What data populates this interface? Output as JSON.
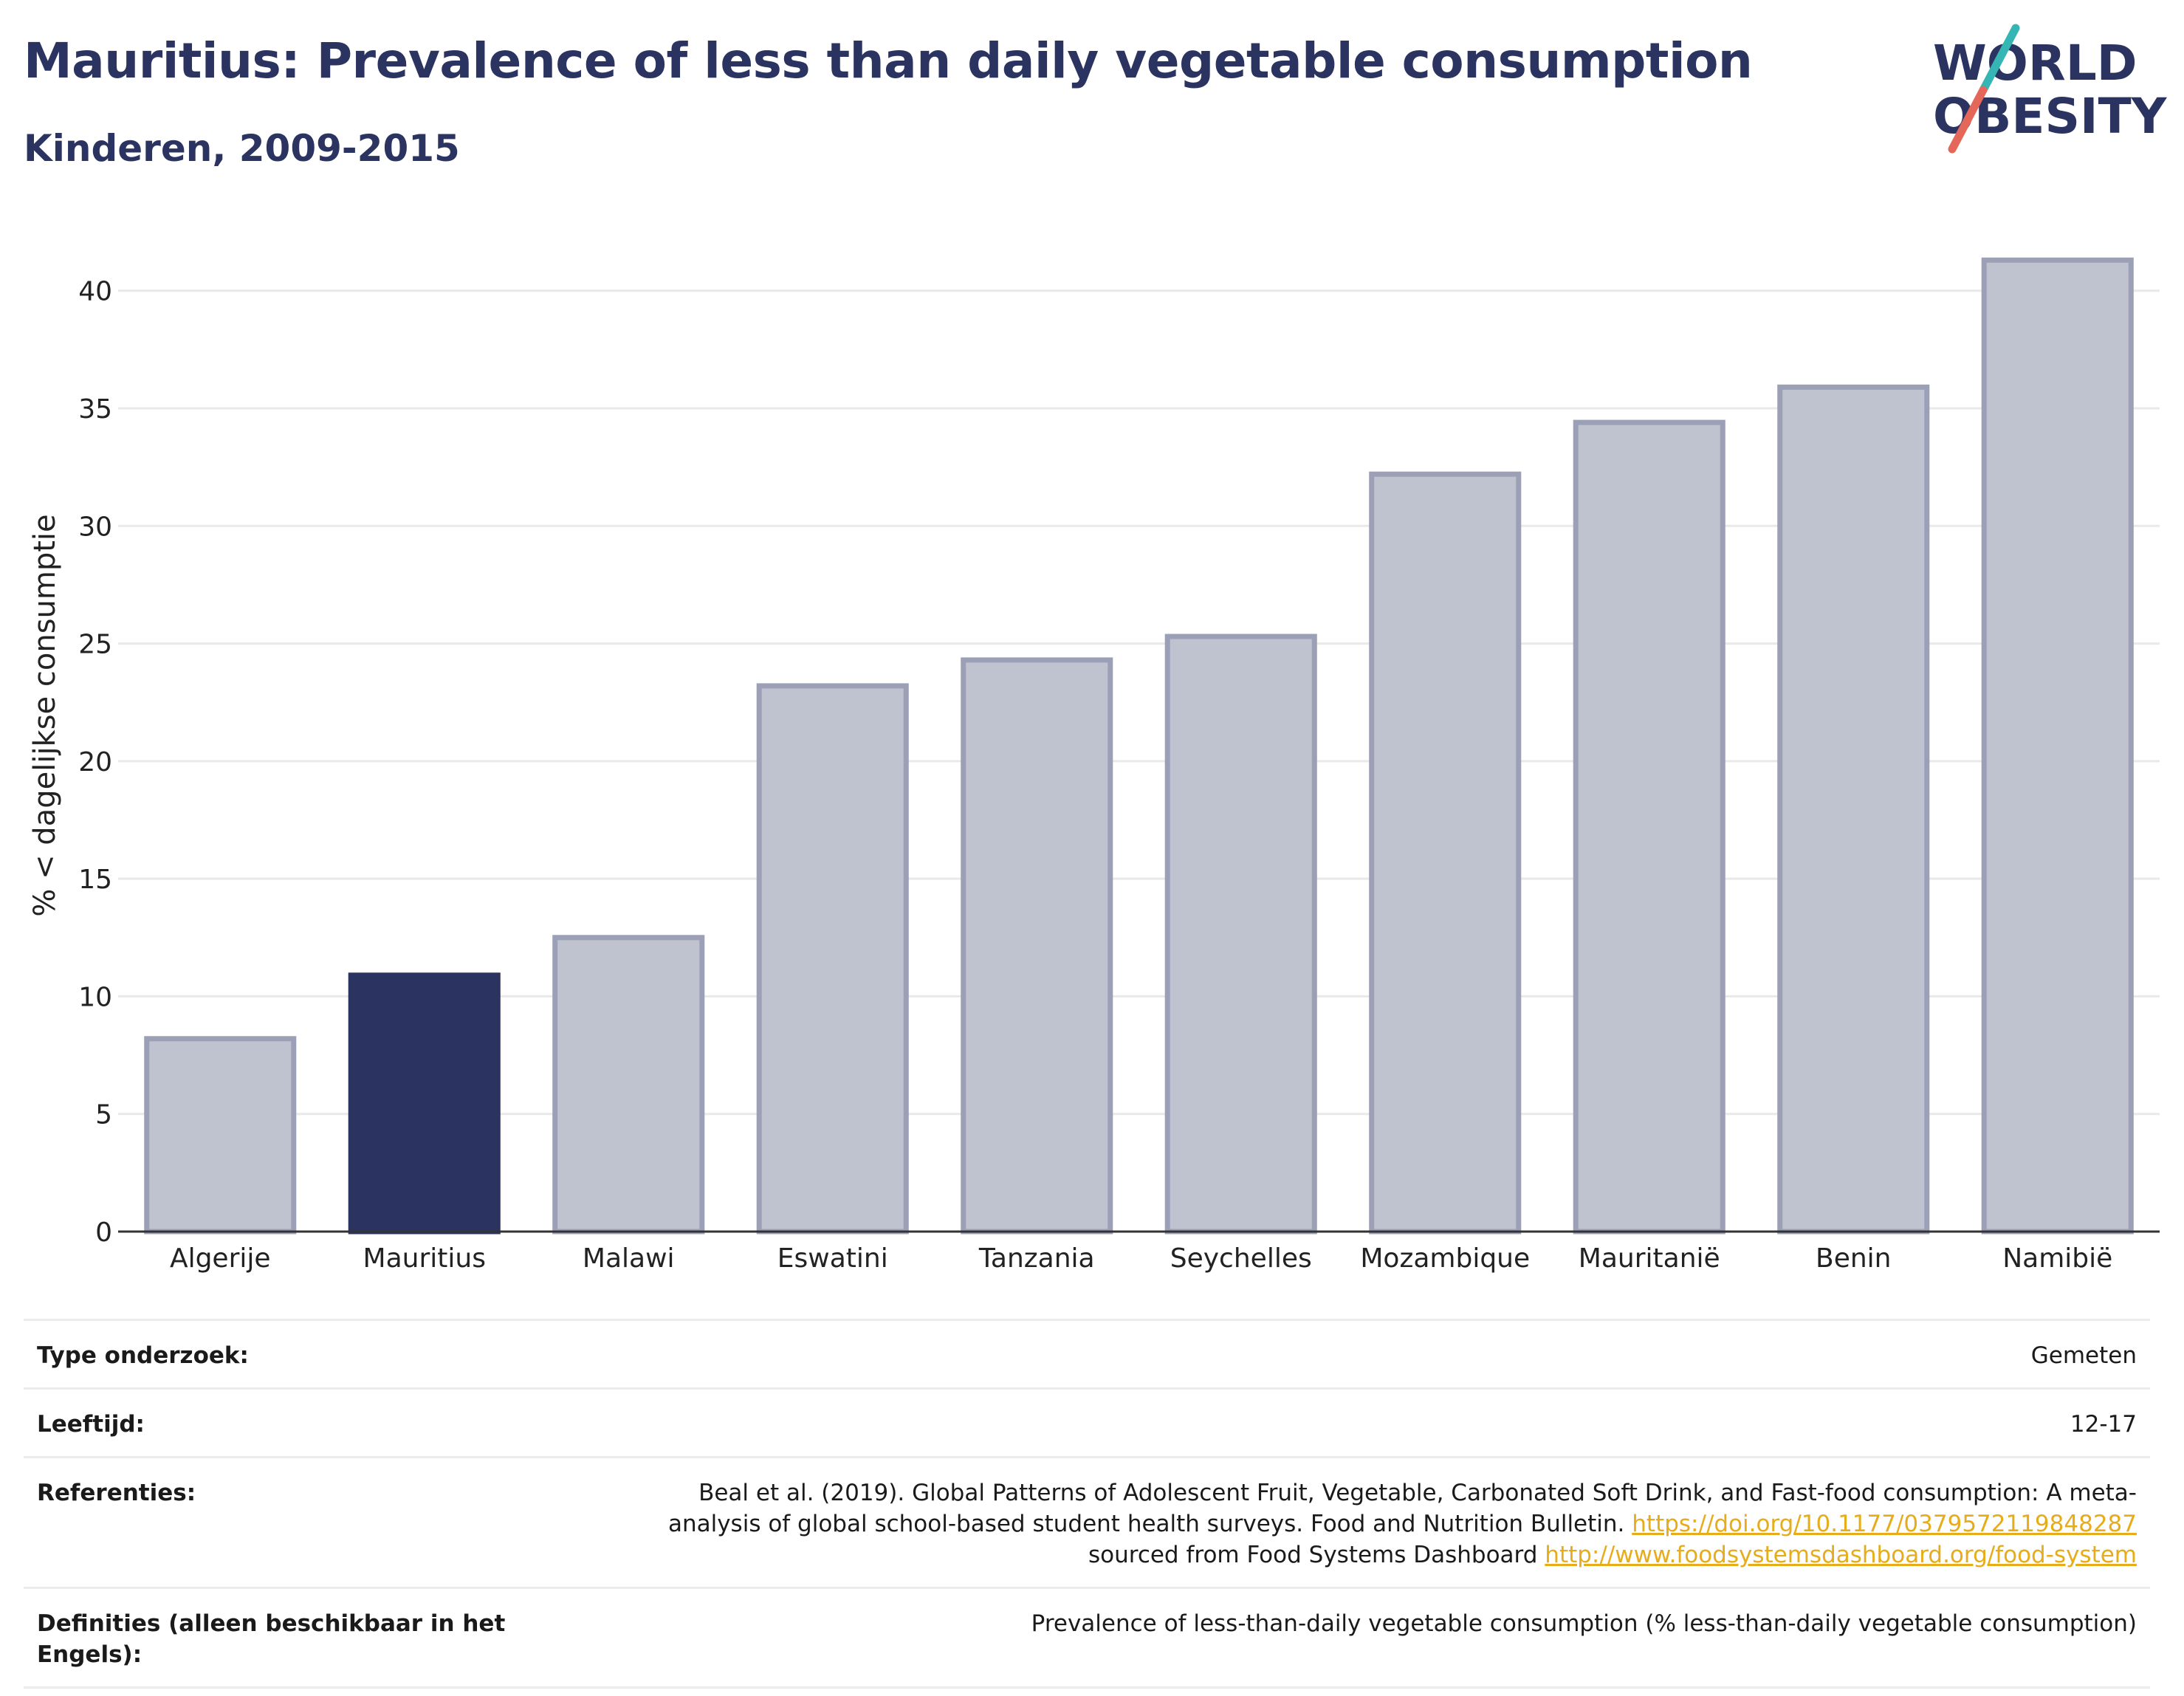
{
  "header": {
    "title": "Mauritius: Prevalence of less than daily vegetable consumption",
    "subtitle": "Kinderen, 2009-2015",
    "logo_line1": "WORLD",
    "logo_line2": "OBESITY"
  },
  "colors": {
    "highlight": "#2b3461",
    "bar_fill": "#bfc2cf",
    "bar_stroke": "#9ba0b7",
    "logo_teal": "#35b6b4",
    "logo_coral": "#e4675a",
    "link": "#e6ac19"
  },
  "chart_data": {
    "type": "bar",
    "categories": [
      "Algerije",
      "Mauritius",
      "Malawi",
      "Eswatini",
      "Tanzania",
      "Seychelles",
      "Mozambique",
      "Mauritanië",
      "Benin",
      "Namibië"
    ],
    "values": [
      8.2,
      10.9,
      12.5,
      23.2,
      24.3,
      25.3,
      32.2,
      34.4,
      35.9,
      41.3
    ],
    "highlight_category": "Mauritius",
    "ylabel": "% < dagelijkse consumptie",
    "ylim": [
      0,
      42
    ],
    "yticks": [
      0,
      5,
      10,
      15,
      20,
      25,
      30,
      35,
      40
    ],
    "grid": true
  },
  "info": {
    "study_type_label": "Type onderzoek:",
    "study_type_value": "Gemeten",
    "age_label": "Leeftijd:",
    "age_value": "12-17",
    "refs_label": "Referenties:",
    "refs_text1": "Beal et al. (2019). Global Patterns of Adolescent Fruit, Vegetable, Carbonated Soft Drink, and Fast-food consumption: A meta-analysis of global school-based student health surveys. Food and Nutrition Bulletin. ",
    "refs_link1": "https://doi.org/10.1177/0379572119848287",
    "refs_text2": " sourced from Food Systems Dashboard ",
    "refs_link2": "http://www.foodsystemsdashboard.org/food-system",
    "defs_label": "Definities (alleen beschikbaar in het Engels):",
    "defs_value": "Prevalence of less-than-daily vegetable consumption (% less-than-daily vegetable consumption)"
  }
}
